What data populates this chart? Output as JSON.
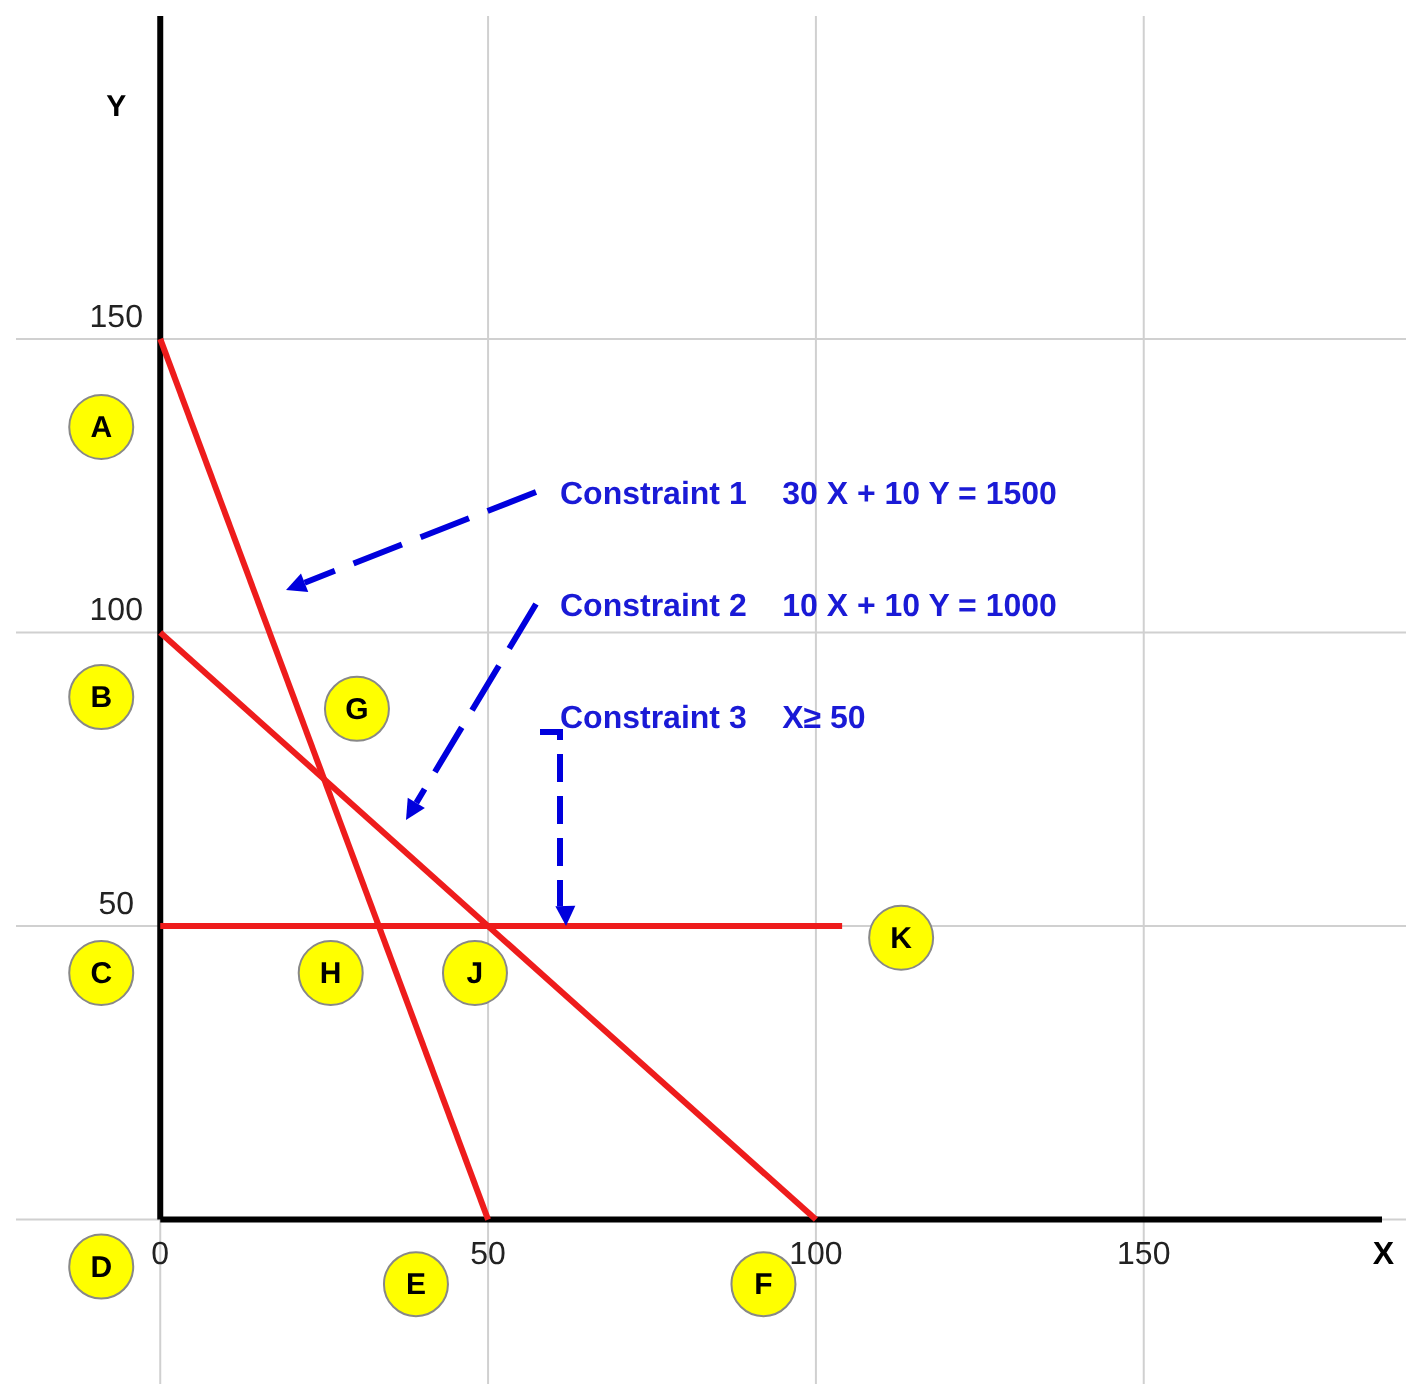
{
  "chart_data": {
    "type": "line",
    "xlabel": "X",
    "ylabel": "Y",
    "xlim": [
      -22,
      190
    ],
    "ylim": [
      -28,
      205
    ],
    "xticks": [
      0,
      50,
      100,
      150
    ],
    "yticks": [
      {
        "value": 0,
        "label": null
      },
      50,
      100,
      150
    ],
    "grid": true,
    "line_style": "solid",
    "series": [
      {
        "color": "#ee1c1c",
        "x": [
          0,
          50
        ],
        "values": [
          150,
          0
        ]
      },
      {
        "color": "#ee1c1c",
        "x": [
          0,
          100
        ],
        "values": [
          100,
          0
        ]
      },
      {
        "color": "#ee1c1c",
        "x": [
          0,
          104
        ],
        "values": [
          50,
          50
        ]
      }
    ],
    "annotations": [
      "Constraint 1    30 X + 10 Y = 1500",
      "Constraint 2    10 X + 10 Y = 1000",
      "Constraint 3    X≥ 50",
      {
        "text": "A",
        "x": -9,
        "y": 135
      },
      {
        "text": "B",
        "x": -9,
        "y": 89
      },
      {
        "text": "C",
        "x": -9,
        "y": 42
      },
      {
        "text": "D",
        "x": -9,
        "y": -8
      },
      {
        "text": "E",
        "x": 39,
        "y": -11
      },
      {
        "text": "F",
        "x": 92,
        "y": -11
      },
      {
        "text": "G",
        "x": 30,
        "y": 87
      },
      {
        "text": "H",
        "x": 26,
        "y": 42
      },
      {
        "text": "J",
        "x": 48,
        "y": 42
      },
      {
        "text": "K",
        "x": 113,
        "y": 48
      }
    ]
  }
}
